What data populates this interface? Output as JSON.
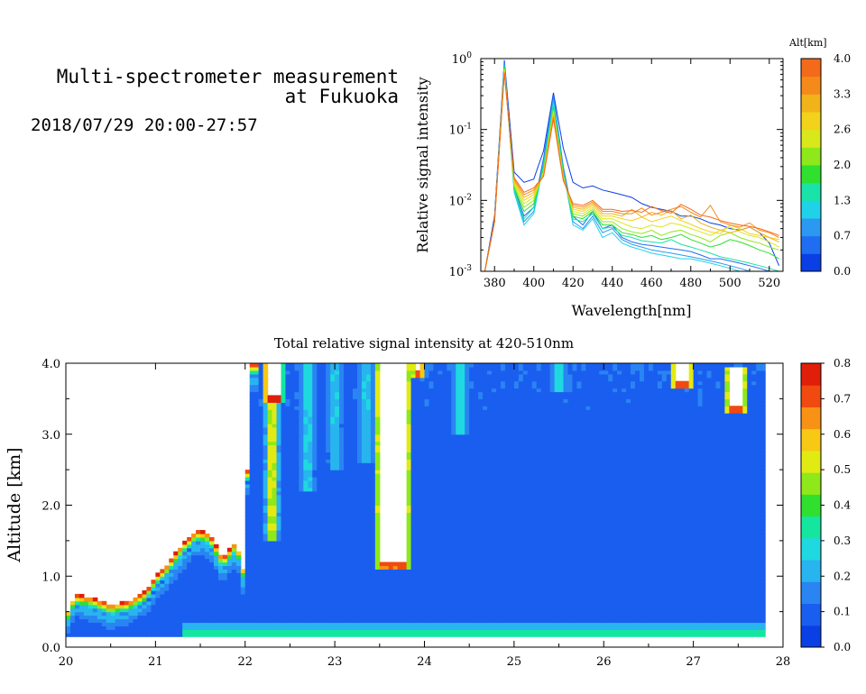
{
  "header": {
    "title_line1": "Multi-spectrometer measurement",
    "title_line2": "at Fukuoka",
    "subtitle": "2018/07/29 20:00-27:57"
  },
  "chart_data": [
    {
      "type": "line",
      "xlabel": "Wavelength[nm]",
      "ylabel": "Relative signal intensity",
      "xlim": [
        373,
        527
      ],
      "ylim_log10": [
        -3,
        0
      ],
      "yscale": "log",
      "x_ticks": [
        "380",
        "400",
        "420",
        "440",
        "460",
        "480",
        "500",
        "520"
      ],
      "y_ticks": [
        {
          "base": "10",
          "exp": "0"
        },
        {
          "base": "10",
          "exp": "-1"
        },
        {
          "base": "10",
          "exp": "-2"
        },
        {
          "base": "10",
          "exp": "-3"
        }
      ],
      "x": [
        375,
        380,
        385,
        390,
        395,
        400,
        405,
        410,
        415,
        420,
        425,
        430,
        435,
        440,
        445,
        450,
        455,
        460,
        465,
        470,
        475,
        480,
        485,
        490,
        495,
        500,
        505,
        510,
        515,
        520,
        525
      ],
      "colorbar": {
        "label": "Alt[km]",
        "ticks": [
          "0.0",
          "0.7",
          "1.3",
          "2.0",
          "2.6",
          "3.3",
          "4.0"
        ],
        "colors": [
          "#0a3fe6",
          "#1f6df0",
          "#2b98f2",
          "#1fd2e8",
          "#19e3a8",
          "#2fe02f",
          "#8fe81a",
          "#d9e81a",
          "#f2d21a",
          "#f2b21a",
          "#f58a1a",
          "#f26a1a"
        ]
      },
      "series": [
        {
          "color": "#0a3fe6",
          "values": [
            0.001,
            0.006,
            0.95,
            0.025,
            0.018,
            0.02,
            0.05,
            0.33,
            0.055,
            0.018,
            0.015,
            0.016,
            0.014,
            0.013,
            0.012,
            0.011,
            0.009,
            0.008,
            0.0075,
            0.007,
            0.006,
            0.006,
            0.0055,
            0.0048,
            0.0045,
            0.004,
            0.0038,
            0.0042,
            0.0035,
            0.0025,
            0.0012
          ]
        },
        {
          "color": "#1f6df0",
          "values": [
            0.001,
            0.005,
            0.9,
            0.015,
            0.006,
            0.008,
            0.04,
            0.3,
            0.03,
            0.006,
            0.0045,
            0.007,
            0.004,
            0.0045,
            0.003,
            0.0026,
            0.0024,
            0.0023,
            0.0022,
            0.0021,
            0.002,
            0.0019,
            0.0017,
            0.0015,
            0.0015,
            0.0014,
            0.0013,
            0.0012,
            0.0011,
            0.001,
            0.001
          ]
        },
        {
          "color": "#2b98f2",
          "values": [
            0.001,
            0.005,
            0.85,
            0.014,
            0.005,
            0.007,
            0.035,
            0.28,
            0.028,
            0.005,
            0.004,
            0.006,
            0.0035,
            0.004,
            0.0028,
            0.0024,
            0.0022,
            0.002,
            0.0019,
            0.0018,
            0.0017,
            0.0016,
            0.0015,
            0.0014,
            0.0013,
            0.0012,
            0.0011,
            0.001,
            0.001,
            0.001,
            0.001
          ]
        },
        {
          "color": "#1fd2e8",
          "values": [
            0.001,
            0.005,
            0.8,
            0.013,
            0.0045,
            0.0065,
            0.032,
            0.25,
            0.026,
            0.0045,
            0.0038,
            0.0055,
            0.003,
            0.0035,
            0.0025,
            0.0022,
            0.002,
            0.0018,
            0.0017,
            0.0016,
            0.0015,
            0.0015,
            0.0014,
            0.0013,
            0.0012,
            0.0011,
            0.001,
            0.001,
            0.001,
            0.001,
            0.001
          ]
        },
        {
          "color": "#19e3a8",
          "values": [
            0.001,
            0.005,
            0.78,
            0.014,
            0.0055,
            0.008,
            0.03,
            0.22,
            0.025,
            0.0055,
            0.005,
            0.0065,
            0.004,
            0.0042,
            0.0032,
            0.003,
            0.0027,
            0.0026,
            0.0025,
            0.0028,
            0.0024,
            0.0022,
            0.002,
            0.0018,
            0.0016,
            0.0015,
            0.0014,
            0.0013,
            0.0012,
            0.0011,
            0.001
          ]
        },
        {
          "color": "#2fe02f",
          "values": [
            0.001,
            0.005,
            0.75,
            0.015,
            0.007,
            0.009,
            0.028,
            0.2,
            0.024,
            0.006,
            0.0055,
            0.007,
            0.0045,
            0.0045,
            0.0035,
            0.0033,
            0.003,
            0.0032,
            0.0028,
            0.003,
            0.0033,
            0.0028,
            0.0025,
            0.0022,
            0.0024,
            0.0028,
            0.0026,
            0.0023,
            0.002,
            0.0018,
            0.0015
          ]
        },
        {
          "color": "#8fe81a",
          "values": [
            0.001,
            0.005,
            0.72,
            0.016,
            0.008,
            0.01,
            0.026,
            0.19,
            0.022,
            0.0065,
            0.006,
            0.0075,
            0.005,
            0.005,
            0.004,
            0.0036,
            0.0034,
            0.0038,
            0.0032,
            0.0036,
            0.0038,
            0.0033,
            0.003,
            0.0026,
            0.0032,
            0.0035,
            0.003,
            0.0027,
            0.0025,
            0.0022,
            0.002
          ]
        },
        {
          "color": "#d9e81a",
          "values": [
            0.001,
            0.005,
            0.7,
            0.017,
            0.009,
            0.011,
            0.025,
            0.18,
            0.022,
            0.007,
            0.0065,
            0.008,
            0.0055,
            0.0055,
            0.0048,
            0.0042,
            0.004,
            0.0045,
            0.0042,
            0.0048,
            0.0045,
            0.004,
            0.0036,
            0.0032,
            0.0038,
            0.0042,
            0.0036,
            0.0032,
            0.003,
            0.0026,
            0.0022
          ]
        },
        {
          "color": "#f2d21a",
          "values": [
            0.001,
            0.005,
            0.68,
            0.018,
            0.01,
            0.012,
            0.024,
            0.17,
            0.021,
            0.0075,
            0.007,
            0.0085,
            0.006,
            0.006,
            0.0055,
            0.0052,
            0.0058,
            0.005,
            0.0055,
            0.006,
            0.0052,
            0.0046,
            0.004,
            0.0036,
            0.0034,
            0.0045,
            0.004,
            0.0034,
            0.0032,
            0.003,
            0.0028
          ]
        },
        {
          "color": "#f2b21a",
          "values": [
            0.001,
            0.005,
            0.66,
            0.019,
            0.011,
            0.013,
            0.023,
            0.16,
            0.02,
            0.008,
            0.0075,
            0.009,
            0.0065,
            0.0065,
            0.006,
            0.0075,
            0.0058,
            0.0068,
            0.0062,
            0.0072,
            0.0055,
            0.0062,
            0.0048,
            0.0042,
            0.0038,
            0.0035,
            0.0038,
            0.0042,
            0.0035,
            0.003,
            0.0026
          ]
        },
        {
          "color": "#f58a1a",
          "values": [
            0.001,
            0.005,
            0.64,
            0.02,
            0.012,
            0.014,
            0.022,
            0.15,
            0.02,
            0.0085,
            0.008,
            0.0095,
            0.007,
            0.007,
            0.0065,
            0.0065,
            0.0078,
            0.0062,
            0.0068,
            0.0075,
            0.0082,
            0.0068,
            0.0058,
            0.0085,
            0.005,
            0.0045,
            0.0042,
            0.0048,
            0.0038,
            0.0035,
            0.003
          ]
        },
        {
          "color": "#f26a1a",
          "values": [
            0.001,
            0.005,
            0.62,
            0.021,
            0.013,
            0.015,
            0.022,
            0.14,
            0.019,
            0.009,
            0.0085,
            0.01,
            0.0075,
            0.0075,
            0.007,
            0.0072,
            0.0068,
            0.0082,
            0.0072,
            0.0066,
            0.0088,
            0.0075,
            0.0062,
            0.0058,
            0.0052,
            0.0048,
            0.0045,
            0.0043,
            0.004,
            0.0036,
            0.0032
          ]
        }
      ]
    },
    {
      "type": "heatmap",
      "title": "Total relative signal intensity at 420-510nm",
      "ylabel": "Altitude [km]",
      "xlim": [
        20,
        28
      ],
      "ylim": [
        0,
        4
      ],
      "data_time_range": [
        20,
        27.8
      ],
      "data_alt_range": [
        0.15,
        4.0
      ],
      "x_ticks": [
        "20",
        "21",
        "22",
        "23",
        "24",
        "25",
        "26",
        "27",
        "28"
      ],
      "y_ticks": [
        "0.0",
        "1.0",
        "2.0",
        "3.0",
        "4.0"
      ],
      "colorbar": {
        "ticks": [
          "0.0",
          "0.1",
          "0.2",
          "0.3",
          "0.4",
          "0.5",
          "0.6",
          "0.7",
          "0.8"
        ],
        "colors": [
          "#0a3fe6",
          "#1a5ef0",
          "#2a84f2",
          "#28b4ef",
          "#1fd8e0",
          "#14e6a0",
          "#2fe02f",
          "#8fe81a",
          "#e2ea14",
          "#f7c914",
          "#f79214",
          "#f04a10",
          "#e01e0a"
        ]
      },
      "base_value": 0.06,
      "low_layer": {
        "altitude": 0.2,
        "value": 0.45,
        "from_time": 21.3,
        "to_time": 27.8
      },
      "second_layer": {
        "altitude": 0.3,
        "value": 0.2,
        "from_time": 21.3,
        "to_time": 27.8
      },
      "cloud_boundary_time": [
        20.0,
        20.1,
        20.3,
        20.5,
        20.7,
        20.9,
        21.0,
        21.15,
        21.3,
        21.45,
        21.6,
        21.75,
        21.9,
        22.0,
        22.05,
        22.15
      ],
      "cloud_boundary_alt": [
        0.45,
        0.75,
        0.7,
        0.6,
        0.65,
        0.8,
        1.0,
        1.2,
        1.45,
        1.65,
        1.6,
        1.25,
        1.5,
        1.0,
        4.0,
        4.0
      ],
      "cloud_columns": [
        {
          "t0": 23.5,
          "t1": 23.8,
          "bottom": 1.2,
          "top": 4.0
        },
        {
          "t0": 22.25,
          "t1": 22.38,
          "bottom": 3.55,
          "top": 4.0
        },
        {
          "t0": 23.9,
          "t1": 23.96,
          "bottom": 3.9,
          "top": 4.0
        },
        {
          "t0": 26.8,
          "t1": 26.95,
          "bottom": 3.75,
          "top": 4.0
        },
        {
          "t0": 27.4,
          "t1": 27.55,
          "bottom": 3.4,
          "top": 3.95
        }
      ],
      "plumes": [
        {
          "time": 22.3,
          "bottom": 1.5,
          "top": 4.0,
          "value": 0.55
        },
        {
          "time": 22.7,
          "bottom": 2.2,
          "top": 4.0,
          "value": 0.2
        },
        {
          "time": 23.0,
          "bottom": 2.5,
          "top": 4.0,
          "value": 0.18
        },
        {
          "time": 23.35,
          "bottom": 2.6,
          "top": 4.0,
          "value": 0.18
        },
        {
          "time": 24.4,
          "bottom": 3.0,
          "top": 4.0,
          "value": 0.22
        },
        {
          "time": 25.5,
          "bottom": 3.6,
          "top": 4.0,
          "value": 0.25
        }
      ]
    }
  ]
}
